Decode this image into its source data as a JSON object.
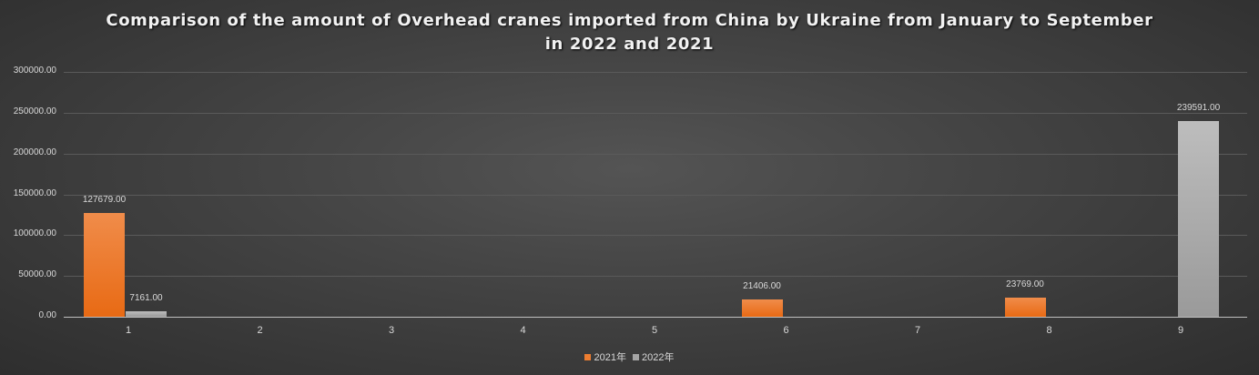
{
  "chart_data": {
    "type": "bar",
    "title": "Comparison of the amount of Overhead cranes imported from China by Ukraine from January to September in 2022 and 2021",
    "title_lines": [
      "Comparison of the amount of Overhead cranes imported from China by Ukraine from January to September",
      "in 2022 and 2021"
    ],
    "categories": [
      "1",
      "2",
      "3",
      "4",
      "5",
      "6",
      "7",
      "8",
      "9"
    ],
    "series": [
      {
        "name": "2021年",
        "color": "#ed7d31",
        "values": [
          127679,
          0,
          0,
          0,
          0,
          21406,
          0,
          23769,
          0
        ]
      },
      {
        "name": "2022年",
        "color": "#a5a5a5",
        "values": [
          7161,
          0,
          0,
          0,
          0,
          0,
          0,
          0,
          239591
        ]
      }
    ],
    "data_labels": [
      {
        "series": 0,
        "index": 0,
        "text": "127679.00"
      },
      {
        "series": 1,
        "index": 0,
        "text": "7161.00"
      },
      {
        "series": 0,
        "index": 5,
        "text": "21406.00"
      },
      {
        "series": 0,
        "index": 7,
        "text": "23769.00"
      },
      {
        "series": 1,
        "index": 8,
        "text": "239591.00"
      }
    ],
    "y_ticks": [
      "0.00",
      "50000.00",
      "100000.00",
      "150000.00",
      "200000.00",
      "250000.00",
      "300000.00"
    ],
    "xlabel": "",
    "ylabel": "",
    "ylim": [
      0,
      300000
    ],
    "grid": true,
    "legend_position": "bottom"
  }
}
